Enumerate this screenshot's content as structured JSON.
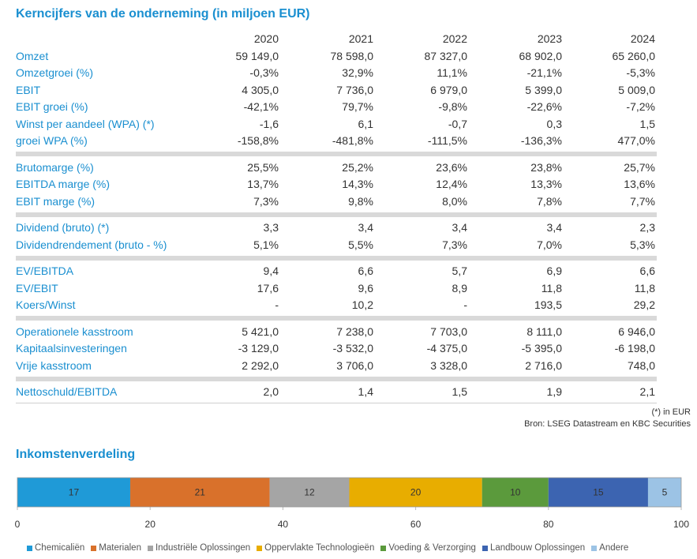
{
  "table": {
    "title": "Kerncijfers van de onderneming (in miljoen EUR)",
    "columns": [
      "2020",
      "2021",
      "2022",
      "2023",
      "2024"
    ],
    "groups": [
      [
        {
          "label": "Omzet",
          "values": [
            "59 149,0",
            "78 598,0",
            "87 327,0",
            "68 902,0",
            "65 260,0"
          ]
        },
        {
          "label": "Omzetgroei (%)",
          "values": [
            "-0,3%",
            "32,9%",
            "11,1%",
            "-21,1%",
            "-5,3%"
          ]
        },
        {
          "label": "EBIT",
          "values": [
            "4 305,0",
            "7 736,0",
            "6 979,0",
            "5 399,0",
            "5 009,0"
          ]
        },
        {
          "label": "EBIT groei (%)",
          "values": [
            "-42,1%",
            "79,7%",
            "-9,8%",
            "-22,6%",
            "-7,2%"
          ]
        },
        {
          "label": "Winst per aandeel (WPA) (*)",
          "values": [
            "-1,6",
            "6,1",
            "-0,7",
            "0,3",
            "1,5"
          ]
        },
        {
          "label": "groei WPA (%)",
          "values": [
            "-158,8%",
            "-481,8%",
            "-111,5%",
            "-136,3%",
            "477,0%"
          ]
        }
      ],
      [
        {
          "label": "Brutomarge (%)",
          "values": [
            "25,5%",
            "25,2%",
            "23,6%",
            "23,8%",
            "25,7%"
          ]
        },
        {
          "label": "EBITDA marge (%)",
          "values": [
            "13,7%",
            "14,3%",
            "12,4%",
            "13,3%",
            "13,6%"
          ]
        },
        {
          "label": "EBIT marge (%)",
          "values": [
            "7,3%",
            "9,8%",
            "8,0%",
            "7,8%",
            "7,7%"
          ]
        }
      ],
      [
        {
          "label": "Dividend (bruto) (*)",
          "values": [
            "3,3",
            "3,4",
            "3,4",
            "3,4",
            "2,3"
          ]
        },
        {
          "label": "Dividendrendement (bruto - %)",
          "values": [
            "5,1%",
            "5,5%",
            "7,3%",
            "7,0%",
            "5,3%"
          ]
        }
      ],
      [
        {
          "label": "EV/EBITDA",
          "values": [
            "9,4",
            "6,6",
            "5,7",
            "6,9",
            "6,6"
          ]
        },
        {
          "label": "EV/EBIT",
          "values": [
            "17,6",
            "9,6",
            "8,9",
            "11,8",
            "11,8"
          ]
        },
        {
          "label": "Koers/Winst",
          "values": [
            "-",
            "10,2",
            "-",
            "193,5",
            "29,2"
          ]
        }
      ],
      [
        {
          "label": "Operationele kasstroom",
          "values": [
            "5 421,0",
            "7 238,0",
            "7 703,0",
            "8 111,0",
            "6 946,0"
          ]
        },
        {
          "label": "Kapitaalsinvesteringen",
          "values": [
            "-3 129,0",
            "-3 532,0",
            "-4 375,0",
            "-5 395,0",
            "-6 198,0"
          ]
        },
        {
          "label": "Vrije kasstroom",
          "values": [
            "2 292,0",
            "3 706,0",
            "3 328,0",
            "2 716,0",
            "748,0"
          ]
        }
      ],
      [
        {
          "label": "Nettoschuld/EBITDA",
          "values": [
            "2,0",
            "1,4",
            "1,5",
            "1,9",
            "2,1"
          ]
        }
      ]
    ]
  },
  "notes": [
    "(*) in EUR",
    "Bron: LSEG Datastream en KBC Securities"
  ],
  "chart_data": {
    "type": "bar",
    "title": "Inkomstenverdeling",
    "orientation": "horizontal",
    "stacked": true,
    "series": [
      {
        "name": "Chemicaliën",
        "color": "#1f9ad7",
        "values": [
          17
        ]
      },
      {
        "name": "Materialen",
        "color": "#d9712b",
        "values": [
          21
        ]
      },
      {
        "name": "Industriële Oplossingen",
        "color": "#a5a5a5",
        "values": [
          12
        ]
      },
      {
        "name": "Oppervlakte Technologieën",
        "color": "#e8ad00",
        "values": [
          20
        ]
      },
      {
        "name": "Voeding & Verzorging",
        "color": "#5b9a3c",
        "values": [
          10
        ]
      },
      {
        "name": "Landbouw Oplossingen",
        "color": "#3c64b1",
        "values": [
          15
        ]
      },
      {
        "name": "Andere",
        "color": "#9cc3e5",
        "values": [
          5
        ]
      }
    ],
    "xlim": [
      0,
      100
    ],
    "xticks": [
      0,
      20,
      40,
      60,
      80,
      100
    ]
  }
}
